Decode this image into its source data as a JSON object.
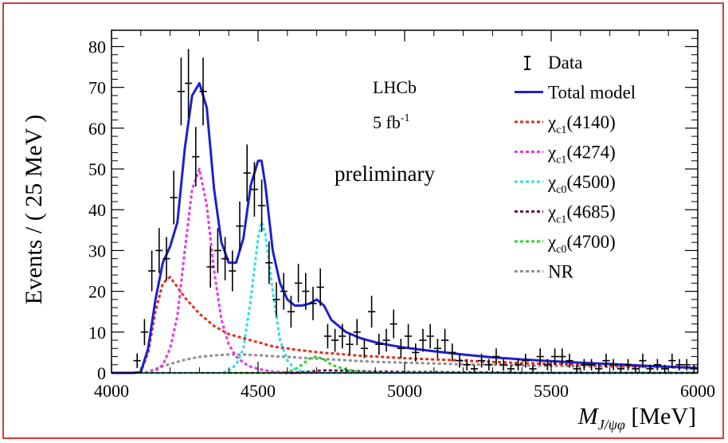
{
  "chart_data": {
    "type": "scatter",
    "title": "",
    "xlabel_main": "M",
    "xlabel_sub": "J/ψφ",
    "xlabel_unit": " [MeV]",
    "ylabel": "Events / ( 25 MeV )",
    "xlim": [
      4000,
      6000
    ],
    "ylim": [
      0,
      84
    ],
    "xticks": [
      4000,
      4500,
      5000,
      5500,
      6000
    ],
    "yticks": [
      0,
      10,
      20,
      30,
      40,
      50,
      60,
      70,
      80
    ],
    "grid": false,
    "legend_placement": "top-right",
    "annotations": {
      "experiment": "LHCb",
      "lumi_value": "5 fb",
      "lumi_exp": "-1",
      "status": "preliminary"
    },
    "legend": [
      {
        "key": "data",
        "symbol": "errorbar",
        "color": "#000000",
        "label": "Data"
      },
      {
        "key": "total",
        "symbol": "line",
        "color": "#1f1fd0",
        "label": "Total model"
      },
      {
        "key": "chi4140",
        "symbol": "dash",
        "color": "#e0301e",
        "label_main": "χ",
        "label_sub": "c1",
        "label_tail": "(4140)"
      },
      {
        "key": "chi4274",
        "symbol": "dash",
        "color": "#e838e0",
        "label_main": "χ",
        "label_sub": "c1",
        "label_tail": "(4274)"
      },
      {
        "key": "chi4500",
        "symbol": "dash",
        "color": "#30e0e0",
        "label_main": "χ",
        "label_sub": "c0",
        "label_tail": "(4500)"
      },
      {
        "key": "chi4685",
        "symbol": "dash",
        "color": "#5a1a5a",
        "label_main": "χ",
        "label_sub": "c1",
        "label_tail": "(4685)"
      },
      {
        "key": "chi4700",
        "symbol": "dash",
        "color": "#30d030",
        "label_main": "χ",
        "label_sub": "c0",
        "label_tail": "(4700)"
      },
      {
        "key": "nr",
        "symbol": "dash",
        "color": "#909090",
        "label": "NR"
      }
    ],
    "data_points": {
      "name": "Data",
      "bin_halfwidth": 12.5,
      "x": [
        4087.5,
        4112.5,
        4137.5,
        4162.5,
        4187.5,
        4212.5,
        4237.5,
        4262.5,
        4287.5,
        4312.5,
        4337.5,
        4362.5,
        4387.5,
        4412.5,
        4437.5,
        4462.5,
        4487.5,
        4512.5,
        4537.5,
        4562.5,
        4587.5,
        4612.5,
        4637.5,
        4662.5,
        4687.5,
        4712.5,
        4737.5,
        4762.5,
        4787.5,
        4812.5,
        4837.5,
        4862.5,
        4887.5,
        4912.5,
        4937.5,
        4962.5,
        4987.5,
        5012.5,
        5037.5,
        5062.5,
        5087.5,
        5112.5,
        5137.5,
        5162.5,
        5187.5,
        5212.5,
        5237.5,
        5262.5,
        5287.5,
        5312.5,
        5337.5,
        5362.5,
        5387.5,
        5412.5,
        5437.5,
        5462.5,
        5487.5,
        5512.5,
        5537.5,
        5562.5,
        5587.5,
        5612.5,
        5637.5,
        5662.5,
        5687.5,
        5712.5,
        5737.5,
        5762.5,
        5787.5,
        5812.5,
        5837.5,
        5862.5,
        5887.5,
        5912.5,
        5937.5,
        5962.5,
        5987.5
      ],
      "y": [
        3,
        10,
        25,
        30,
        28,
        43,
        69,
        71,
        53,
        69,
        26,
        30,
        28,
        25,
        36,
        49,
        45,
        41,
        27,
        18,
        20,
        15,
        22,
        20,
        17,
        21,
        9,
        8,
        9,
        7,
        10,
        6,
        15,
        7,
        8,
        12,
        6,
        9,
        5,
        8,
        9,
        6,
        8,
        5,
        3,
        2,
        1,
        3,
        2,
        4,
        2,
        1,
        2,
        3,
        1,
        4,
        2,
        4,
        4,
        3,
        1,
        2,
        2,
        1,
        3,
        2,
        1,
        2,
        1,
        3,
        1,
        2,
        1,
        3,
        2,
        2,
        1
      ],
      "err": [
        1.8,
        3.2,
        5.0,
        5.5,
        5.3,
        6.6,
        8.3,
        8.4,
        7.3,
        8.3,
        5.1,
        5.5,
        5.3,
        5.0,
        6.0,
        7.0,
        6.7,
        6.4,
        5.2,
        4.2,
        4.5,
        3.9,
        4.7,
        4.5,
        4.1,
        4.6,
        3.0,
        2.8,
        3.0,
        2.6,
        3.2,
        2.4,
        3.9,
        2.6,
        2.8,
        3.5,
        2.4,
        3.0,
        2.2,
        2.8,
        3.0,
        2.4,
        2.8,
        2.2,
        1.7,
        1.4,
        1.0,
        1.7,
        1.4,
        2.0,
        1.4,
        1.0,
        1.4,
        1.7,
        1.0,
        2.0,
        1.4,
        2.0,
        2.0,
        1.7,
        1.0,
        1.4,
        1.4,
        1.0,
        1.7,
        1.4,
        1.0,
        1.4,
        1.0,
        1.7,
        1.0,
        1.4,
        1.0,
        1.7,
        1.4,
        1.4,
        1.0
      ]
    },
    "x": [
      4000,
      4050,
      4075,
      4100,
      4125,
      4150,
      4175,
      4200,
      4225,
      4250,
      4275,
      4300,
      4325,
      4350,
      4375,
      4400,
      4425,
      4450,
      4475,
      4500,
      4512,
      4525,
      4550,
      4575,
      4600,
      4625,
      4650,
      4675,
      4700,
      4725,
      4750,
      4800,
      4850,
      4900,
      4950,
      5000,
      5100,
      5200,
      5300,
      5400,
      5500,
      5600,
      5700,
      5800,
      5900,
      6000
    ],
    "series": [
      {
        "key": "total",
        "values": [
          0,
          0,
          0,
          0.2,
          6,
          18,
          27,
          31,
          37,
          55,
          68,
          71,
          65,
          45,
          32,
          27,
          27,
          33,
          46,
          52,
          52,
          46,
          30,
          22,
          18,
          16.5,
          16.5,
          17,
          18,
          16.5,
          13,
          10,
          8.5,
          7.5,
          6.8,
          6.2,
          5.3,
          4.5,
          3.8,
          3.3,
          2.9,
          2.5,
          2.2,
          1.8,
          1.5,
          1.2
        ]
      },
      {
        "key": "chi4140",
        "values": [
          0,
          0,
          0,
          0.2,
          5,
          15,
          22,
          23.5,
          21,
          18.5,
          16.5,
          14.5,
          13,
          11.5,
          10.5,
          9.5,
          9,
          8.5,
          8,
          7.5,
          7.3,
          7,
          6.5,
          6.2,
          6,
          5.7,
          5.5,
          5.3,
          5.1,
          4.9,
          4.8,
          4.5,
          4.2,
          4,
          3.8,
          3.6,
          3.3,
          3,
          2.7,
          2.4,
          2.2,
          2,
          1.8,
          1.6,
          1.5,
          1.3
        ]
      },
      {
        "key": "chi4274",
        "values": [
          0,
          0,
          0,
          0,
          0,
          0.5,
          2,
          6,
          14,
          30,
          45,
          50,
          41,
          25,
          13,
          7,
          4,
          2.5,
          1.5,
          1,
          0.8,
          0.6,
          0.3,
          0.2,
          0.1,
          0,
          0,
          0,
          0,
          0,
          0,
          0,
          0,
          0,
          0,
          0,
          0,
          0,
          0,
          0,
          0,
          0,
          0,
          0,
          0,
          0
        ]
      },
      {
        "key": "chi4500",
        "values": [
          0,
          0,
          0,
          0,
          0,
          0,
          0,
          0,
          0,
          0,
          0,
          0,
          0,
          0,
          0,
          0.5,
          2,
          6,
          18,
          33,
          37,
          34,
          20,
          8,
          3,
          1,
          0.3,
          0.2,
          0,
          0,
          0,
          0,
          0,
          0,
          0,
          0,
          0,
          0,
          0,
          0,
          0,
          0,
          0,
          0,
          0,
          0
        ]
      },
      {
        "key": "chi4685",
        "values": [
          0,
          0,
          0,
          0,
          0,
          0,
          0,
          0,
          0,
          0,
          0,
          0,
          0,
          0,
          0,
          0,
          0,
          0,
          0,
          0,
          0,
          0,
          0,
          0,
          0,
          0,
          0.2,
          0.3,
          0.5,
          0.6,
          0.6,
          0.5,
          0.4,
          0.3,
          0.3,
          0.2,
          0.2,
          0.1,
          0.1,
          0,
          0,
          0,
          0,
          0,
          0,
          0
        ]
      },
      {
        "key": "chi4700",
        "values": [
          0,
          0,
          0,
          0,
          0,
          0,
          0,
          0,
          0,
          0,
          0,
          0,
          0,
          0,
          0,
          0,
          0,
          0,
          0,
          0,
          0,
          0,
          0,
          0,
          0.2,
          0.8,
          2,
          3.5,
          4,
          3.3,
          2,
          0.8,
          0.3,
          0.1,
          0,
          0,
          0,
          0,
          0,
          0,
          0,
          0,
          0,
          0,
          0,
          0
        ]
      },
      {
        "key": "nr",
        "values": [
          0,
          0,
          0,
          0,
          0.3,
          1,
          1.6,
          2.2,
          2.7,
          3.2,
          3.6,
          3.9,
          4.1,
          4.3,
          4.4,
          4.5,
          4.5,
          4.5,
          4.4,
          4.3,
          4.3,
          4.2,
          4.1,
          4,
          3.9,
          3.8,
          3.7,
          3.6,
          3.5,
          3.4,
          3.3,
          3.1,
          2.9,
          2.7,
          2.6,
          2.5,
          2.3,
          2.1,
          2,
          1.8,
          1.7,
          1.6,
          1.5,
          1.4,
          1.3,
          1.2
        ]
      }
    ]
  }
}
